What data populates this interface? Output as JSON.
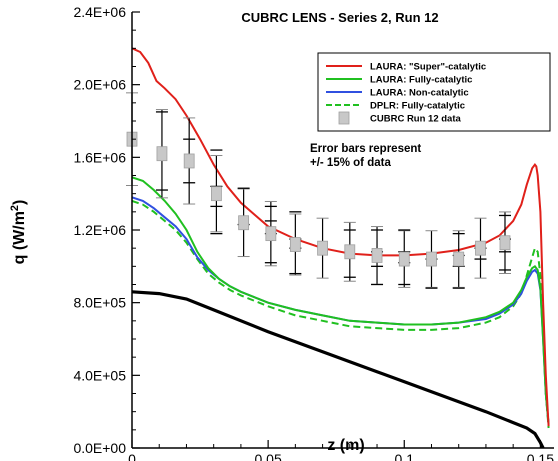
{
  "chart_data": {
    "type": "line",
    "title": "CUBRC LENS - Series 2, Run 12",
    "xlabel": "z (m)",
    "ylabel": "q (W/m",
    "ylabel_superscript": "2",
    "ylabel_close": ")",
    "xlim": [
      0,
      0.155
    ],
    "ylim": [
      0,
      2400000
    ],
    "x_ticks": [
      0,
      0.05,
      0.1,
      0.15
    ],
    "x_tick_labels": [
      "0",
      "0.05",
      "0.1",
      "0.15"
    ],
    "y_ticks": [
      0,
      400000,
      800000,
      1200000,
      1600000,
      2000000,
      2400000
    ],
    "y_tick_labels": [
      "0.0E+00",
      "4.0E+05",
      "8.0E+05",
      "1.2E+06",
      "1.6E+06",
      "2.0E+06",
      "2.4E+06"
    ],
    "grid": false,
    "legend_position": "top-right",
    "annotation_lines": [
      "Error bars represent",
      "+/- 15% of data"
    ],
    "series": [
      {
        "name": "LAURA: \"Super\"-catalytic",
        "color": "#e0201a",
        "style": "solid",
        "x": [
          0,
          0.003,
          0.006,
          0.009,
          0.012,
          0.016,
          0.02,
          0.025,
          0.03,
          0.035,
          0.04,
          0.05,
          0.06,
          0.07,
          0.08,
          0.09,
          0.1,
          0.11,
          0.12,
          0.13,
          0.135,
          0.14,
          0.143,
          0.145,
          0.147,
          0.148,
          0.1485,
          0.149,
          0.15,
          0.151,
          0.152,
          0.153
        ],
        "y": [
          2200000,
          2180000,
          2120000,
          2020000,
          1980000,
          1920000,
          1830000,
          1700000,
          1560000,
          1440000,
          1350000,
          1220000,
          1150000,
          1100000,
          1070000,
          1060000,
          1060000,
          1070000,
          1090000,
          1130000,
          1170000,
          1250000,
          1340000,
          1450000,
          1540000,
          1560000,
          1550000,
          1500000,
          1300000,
          800000,
          400000,
          120000
        ]
      },
      {
        "name": "LAURA: Fully-catalytic",
        "color": "#20c020",
        "style": "solid",
        "x": [
          0,
          0.004,
          0.008,
          0.012,
          0.016,
          0.02,
          0.024,
          0.028,
          0.032,
          0.036,
          0.04,
          0.05,
          0.06,
          0.07,
          0.08,
          0.09,
          0.1,
          0.11,
          0.12,
          0.13,
          0.135,
          0.14,
          0.143,
          0.145,
          0.147,
          0.148,
          0.149,
          0.15,
          0.151,
          0.152,
          0.153
        ],
        "y": [
          1490000,
          1470000,
          1420000,
          1360000,
          1290000,
          1200000,
          1080000,
          990000,
          930000,
          890000,
          860000,
          800000,
          760000,
          730000,
          700000,
          690000,
          680000,
          680000,
          690000,
          720000,
          750000,
          800000,
          870000,
          940000,
          990000,
          1000000,
          980000,
          880000,
          600000,
          300000,
          130000
        ]
      },
      {
        "name": "LAURA: Non-catalytic",
        "color": "#3050e0",
        "style": "solid",
        "x": [
          0,
          0.004,
          0.008,
          0.012,
          0.016,
          0.02,
          0.024,
          0.028,
          0.032,
          0.036,
          0.04,
          0.05,
          0.06,
          0.07,
          0.08,
          0.09,
          0.1,
          0.11,
          0.12,
          0.13,
          0.135,
          0.14,
          0.143,
          0.145,
          0.147,
          0.148,
          0.149,
          0.15,
          0.151,
          0.152,
          0.153
        ],
        "y": [
          1380000,
          1360000,
          1320000,
          1270000,
          1220000,
          1150000,
          1050000,
          980000,
          930000,
          890000,
          860000,
          800000,
          760000,
          730000,
          700000,
          690000,
          680000,
          680000,
          690000,
          710000,
          740000,
          790000,
          850000,
          920000,
          970000,
          980000,
          960000,
          870000,
          600000,
          300000,
          130000
        ]
      },
      {
        "name": "DPLR: Fully-catalytic",
        "color": "#20c020",
        "style": "dashed",
        "x": [
          0,
          0.004,
          0.008,
          0.012,
          0.016,
          0.02,
          0.024,
          0.028,
          0.032,
          0.036,
          0.04,
          0.05,
          0.06,
          0.07,
          0.08,
          0.09,
          0.1,
          0.11,
          0.12,
          0.13,
          0.135,
          0.14,
          0.143,
          0.145,
          0.147,
          0.148,
          0.149,
          0.15,
          0.151,
          0.152,
          0.153
        ],
        "y": [
          1360000,
          1340000,
          1300000,
          1250000,
          1200000,
          1130000,
          1040000,
          960000,
          910000,
          870000,
          840000,
          780000,
          730000,
          700000,
          670000,
          660000,
          650000,
          650000,
          660000,
          690000,
          720000,
          780000,
          850000,
          950000,
          1050000,
          1100000,
          1080000,
          950000,
          650000,
          300000,
          110000
        ]
      }
    ],
    "unlabeled_series": {
      "color": "#000000",
      "style": "solid",
      "x": [
        0,
        0.01,
        0.02,
        0.03,
        0.05,
        0.07,
        0.09,
        0.11,
        0.13,
        0.14,
        0.145,
        0.148,
        0.15,
        0.151
      ],
      "y": [
        860000,
        850000,
        820000,
        760000,
        640000,
        530000,
        420000,
        310000,
        200000,
        140000,
        110000,
        80000,
        30000,
        0
      ]
    },
    "data_points": {
      "name": "CUBRC Run 12 data",
      "color": "#c8c8c8",
      "x": [
        0,
        0.011,
        0.021,
        0.031,
        0.041,
        0.051,
        0.06,
        0.07,
        0.08,
        0.09,
        0.1,
        0.11,
        0.12,
        0.128,
        0.137
      ],
      "y": [
        1700000,
        1620000,
        1580000,
        1400000,
        1240000,
        1180000,
        1120000,
        1100000,
        1080000,
        1060000,
        1040000,
        1040000,
        1040000,
        1100000,
        1130000
      ]
    },
    "error_bar_fraction": 0.15,
    "cap_marks": [
      {
        "x": 0.011,
        "y": [
          1850000,
          1420000
        ]
      },
      {
        "x": 0.021,
        "y": [
          1700000,
          1460000
        ]
      },
      {
        "x": 0.031,
        "y": [
          1640000,
          1440000,
          1330000,
          1180000
        ]
      },
      {
        "x": 0.041,
        "y": [
          1430000,
          1230000
        ]
      },
      {
        "x": 0.051,
        "y": [
          1330000,
          1250000,
          1180000,
          1020000
        ]
      },
      {
        "x": 0.06,
        "y": [
          1300000,
          1150000,
          1100000,
          960000
        ]
      },
      {
        "x": 0.08,
        "y": [
          1200000,
          940000
        ]
      },
      {
        "x": 0.09,
        "y": [
          1200000,
          1080000,
          1000000,
          900000
        ]
      },
      {
        "x": 0.1,
        "y": [
          1200000,
          1080000,
          1020000,
          900000
        ]
      },
      {
        "x": 0.11,
        "y": [
          1040000,
          880000
        ]
      },
      {
        "x": 0.12,
        "y": [
          1180000,
          1060000,
          1000000,
          880000
        ]
      },
      {
        "x": 0.128,
        "y": [
          1100000,
          1040000
        ]
      },
      {
        "x": 0.137,
        "y": [
          1280000,
          1150000,
          1080000,
          980000
        ]
      }
    ]
  }
}
